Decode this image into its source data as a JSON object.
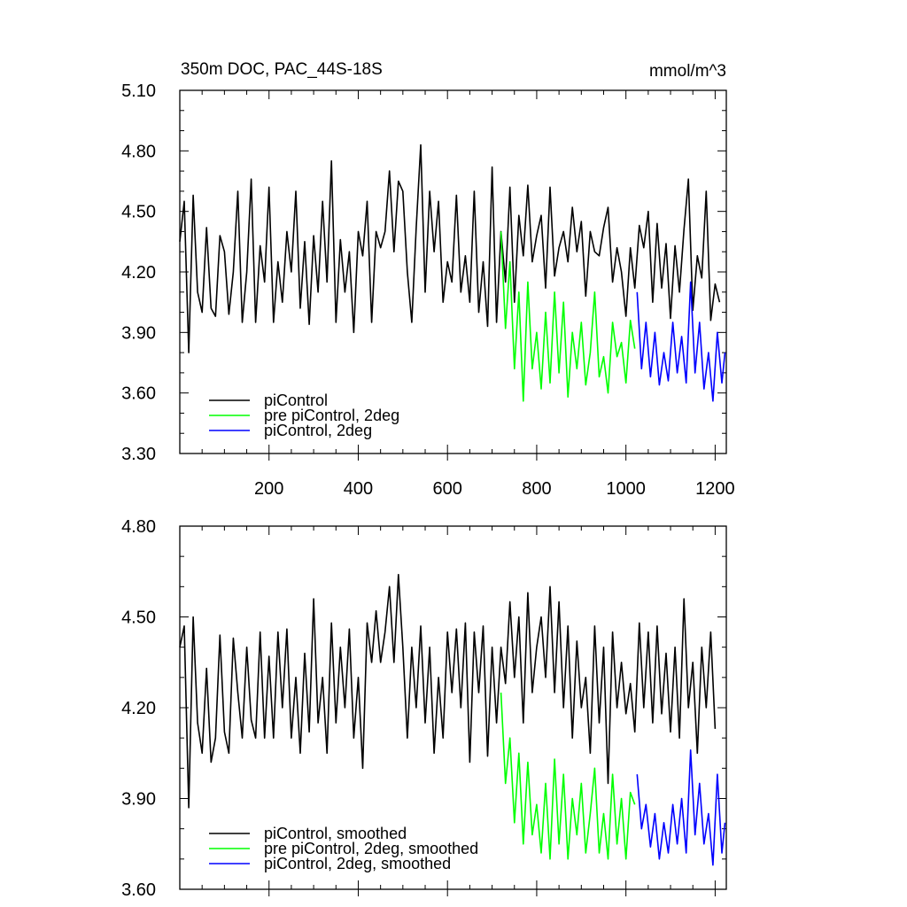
{
  "chart_data": [
    {
      "type": "line",
      "title": "350m DOC, PAC_44S-18S",
      "units": "mmol/m^3",
      "xlim": [
        0,
        1225
      ],
      "ylim": [
        3.3,
        5.1
      ],
      "xticks": [
        200,
        400,
        600,
        800,
        1000,
        1200
      ],
      "xtick_labels": [
        "200",
        "400",
        "600",
        "800",
        "1000",
        "1200"
      ],
      "yticks": [
        3.3,
        3.6,
        3.9,
        4.2,
        4.5,
        4.8,
        5.1
      ],
      "ytick_labels": [
        "3.30",
        "3.60",
        "3.90",
        "4.20",
        "4.50",
        "4.80",
        "5.10"
      ],
      "legend_position": "bottom-left",
      "grid": false,
      "series": [
        {
          "name": "piControl",
          "color": "#000000",
          "x": [
            0,
            10,
            20,
            30,
            40,
            50,
            60,
            70,
            80,
            90,
            100,
            110,
            120,
            130,
            140,
            150,
            160,
            170,
            180,
            190,
            200,
            210,
            220,
            230,
            240,
            250,
            260,
            270,
            280,
            290,
            300,
            310,
            320,
            330,
            340,
            350,
            360,
            370,
            380,
            390,
            400,
            410,
            420,
            430,
            440,
            450,
            460,
            470,
            480,
            490,
            500,
            510,
            520,
            530,
            540,
            550,
            560,
            570,
            580,
            590,
            600,
            610,
            620,
            630,
            640,
            650,
            660,
            670,
            680,
            690,
            700,
            710,
            720,
            730,
            740,
            750,
            760,
            770,
            780,
            790,
            800,
            810,
            820,
            830,
            840,
            850,
            860,
            870,
            880,
            890,
            900,
            910,
            920,
            930,
            940,
            950,
            960,
            970,
            980,
            990,
            1000,
            1010,
            1020,
            1030,
            1040,
            1050,
            1060,
            1070,
            1080,
            1090,
            1100,
            1110,
            1120,
            1130,
            1140,
            1150,
            1160,
            1170,
            1180,
            1190,
            1200,
            1210
          ],
          "y": [
            4.35,
            4.55,
            3.8,
            4.58,
            4.1,
            4.0,
            4.42,
            4.02,
            3.98,
            4.38,
            4.3,
            3.99,
            4.2,
            4.6,
            3.95,
            4.2,
            4.66,
            3.95,
            4.33,
            4.15,
            4.62,
            3.95,
            4.25,
            4.05,
            4.4,
            4.2,
            4.6,
            4.02,
            4.35,
            3.94,
            4.38,
            4.1,
            4.55,
            4.15,
            4.75,
            3.95,
            4.36,
            4.1,
            4.3,
            3.9,
            4.4,
            4.28,
            4.55,
            3.95,
            4.4,
            4.32,
            4.4,
            4.7,
            4.3,
            4.65,
            4.6,
            4.2,
            3.95,
            4.42,
            4.83,
            4.1,
            4.6,
            4.3,
            4.55,
            4.05,
            4.25,
            4.15,
            4.58,
            4.1,
            4.28,
            4.05,
            4.6,
            4.0,
            4.25,
            3.93,
            4.72,
            3.95,
            4.4,
            4.15,
            4.62,
            4.05,
            4.48,
            4.28,
            4.63,
            4.25,
            4.38,
            4.48,
            4.12,
            4.62,
            4.18,
            4.32,
            4.4,
            4.25,
            4.52,
            4.3,
            4.45,
            4.08,
            4.4,
            4.3,
            4.28,
            4.42,
            4.52,
            4.15,
            4.32,
            4.2,
            3.98,
            4.32,
            4.12,
            4.43,
            4.32,
            4.5,
            4.05,
            4.44,
            4.12,
            4.34,
            3.97,
            4.33,
            4.1,
            4.41,
            4.66,
            4.01,
            4.28,
            4.17,
            4.6,
            3.96,
            4.14,
            4.05
          ]
        },
        {
          "name": "pre piControl, 2deg",
          "color": "#00ff00",
          "x": [
            720,
            730,
            740,
            750,
            760,
            770,
            780,
            790,
            800,
            810,
            820,
            830,
            840,
            850,
            860,
            870,
            880,
            890,
            900,
            910,
            920,
            930,
            940,
            950,
            960,
            970,
            980,
            990,
            1000,
            1010,
            1020
          ],
          "y": [
            4.4,
            3.92,
            4.25,
            3.72,
            4.1,
            3.56,
            4.15,
            3.72,
            3.9,
            3.62,
            4.0,
            3.65,
            4.1,
            3.7,
            4.05,
            3.58,
            3.9,
            3.72,
            3.95,
            3.64,
            3.8,
            4.1,
            3.68,
            3.78,
            3.6,
            3.95,
            3.78,
            3.85,
            3.65,
            3.96,
            3.82
          ]
        },
        {
          "name": "piControl, 2deg",
          "color": "#0000ff",
          "x": [
            1025,
            1035,
            1045,
            1055,
            1065,
            1075,
            1085,
            1095,
            1105,
            1115,
            1125,
            1135,
            1145,
            1155,
            1165,
            1175,
            1185,
            1195,
            1205,
            1215,
            1222
          ],
          "y": [
            4.1,
            3.72,
            3.95,
            3.68,
            3.9,
            3.64,
            3.8,
            3.66,
            3.95,
            3.7,
            3.88,
            3.65,
            4.15,
            3.7,
            3.95,
            3.62,
            3.8,
            3.56,
            3.9,
            3.65,
            3.8
          ]
        }
      ]
    },
    {
      "type": "line",
      "title": "",
      "xlim": [
        0,
        1225
      ],
      "ylim": [
        3.6,
        4.8
      ],
      "yticks": [
        3.6,
        3.9,
        4.2,
        4.5,
        4.8
      ],
      "ytick_labels": [
        "3.60",
        "3.90",
        "4.20",
        "4.50",
        "4.80"
      ],
      "legend_position": "bottom-left",
      "grid": false,
      "series": [
        {
          "name": "piControl, smoothed",
          "color": "#000000",
          "x": [
            0,
            10,
            20,
            30,
            40,
            50,
            60,
            70,
            80,
            90,
            100,
            110,
            120,
            130,
            140,
            150,
            160,
            170,
            180,
            190,
            200,
            210,
            220,
            230,
            240,
            250,
            260,
            270,
            280,
            290,
            300,
            310,
            320,
            330,
            340,
            350,
            360,
            370,
            380,
            390,
            400,
            410,
            420,
            430,
            440,
            450,
            460,
            470,
            480,
            490,
            500,
            510,
            520,
            530,
            540,
            550,
            560,
            570,
            580,
            590,
            600,
            610,
            620,
            630,
            640,
            650,
            660,
            670,
            680,
            690,
            700,
            710,
            720,
            730,
            740,
            750,
            760,
            770,
            780,
            790,
            800,
            810,
            820,
            830,
            840,
            850,
            860,
            870,
            880,
            890,
            900,
            910,
            920,
            930,
            940,
            950,
            960,
            970,
            980,
            990,
            1000,
            1010,
            1020,
            1030,
            1040,
            1050,
            1060,
            1070,
            1080,
            1090,
            1100,
            1110,
            1120,
            1130,
            1140,
            1150,
            1160,
            1170,
            1180,
            1190,
            1200
          ],
          "y": [
            4.4,
            4.47,
            3.87,
            4.5,
            4.15,
            4.05,
            4.33,
            4.02,
            4.1,
            4.44,
            4.12,
            4.05,
            4.43,
            4.25,
            4.1,
            4.4,
            4.16,
            4.1,
            4.45,
            4.1,
            4.37,
            4.1,
            4.45,
            4.2,
            4.46,
            4.1,
            4.3,
            4.05,
            4.38,
            4.12,
            4.56,
            4.15,
            4.3,
            4.05,
            4.48,
            4.15,
            4.4,
            4.2,
            4.46,
            4.1,
            4.3,
            4.0,
            4.48,
            4.35,
            4.52,
            4.35,
            4.45,
            4.6,
            4.35,
            4.64,
            4.4,
            4.1,
            4.4,
            4.2,
            4.47,
            4.15,
            4.4,
            4.05,
            4.3,
            4.1,
            4.45,
            4.25,
            4.46,
            4.2,
            4.48,
            4.02,
            4.45,
            4.25,
            4.47,
            4.04,
            4.4,
            4.15,
            4.4,
            4.28,
            4.55,
            4.3,
            4.5,
            4.15,
            4.58,
            4.25,
            4.4,
            4.5,
            4.3,
            4.6,
            4.25,
            4.55,
            4.2,
            4.47,
            4.1,
            4.42,
            4.2,
            4.3,
            4.05,
            4.47,
            4.15,
            4.4,
            3.95,
            4.45,
            4.2,
            4.35,
            4.18,
            4.28,
            4.12,
            4.48,
            4.2,
            4.45,
            4.15,
            4.47,
            4.18,
            4.38,
            4.12,
            4.4,
            4.1,
            4.56,
            4.2,
            4.35,
            4.05,
            4.4,
            4.2,
            4.45,
            4.13
          ]
        },
        {
          "name": "pre piControl, 2deg, smoothed",
          "color": "#00ff00",
          "x": [
            720,
            730,
            740,
            750,
            760,
            770,
            780,
            790,
            800,
            810,
            820,
            830,
            840,
            850,
            860,
            870,
            880,
            890,
            900,
            910,
            920,
            930,
            940,
            950,
            960,
            970,
            980,
            990,
            1000,
            1010,
            1020
          ],
          "y": [
            4.25,
            3.95,
            4.1,
            3.82,
            4.05,
            3.75,
            4.02,
            3.78,
            3.88,
            3.72,
            3.95,
            3.7,
            4.03,
            3.75,
            3.98,
            3.7,
            3.9,
            3.78,
            3.95,
            3.72,
            3.85,
            4.0,
            3.72,
            3.85,
            3.7,
            3.98,
            3.75,
            3.9,
            3.7,
            3.92,
            3.88
          ]
        },
        {
          "name": "piControl, 2deg, smoothed",
          "color": "#0000ff",
          "x": [
            1025,
            1035,
            1045,
            1055,
            1065,
            1075,
            1085,
            1095,
            1105,
            1115,
            1125,
            1135,
            1145,
            1155,
            1165,
            1175,
            1185,
            1195,
            1205,
            1215,
            1222
          ],
          "y": [
            3.98,
            3.8,
            3.88,
            3.74,
            3.85,
            3.7,
            3.82,
            3.72,
            3.88,
            3.75,
            3.9,
            3.72,
            4.06,
            3.78,
            3.95,
            3.75,
            3.85,
            3.68,
            3.98,
            3.72,
            3.82
          ]
        }
      ]
    }
  ]
}
